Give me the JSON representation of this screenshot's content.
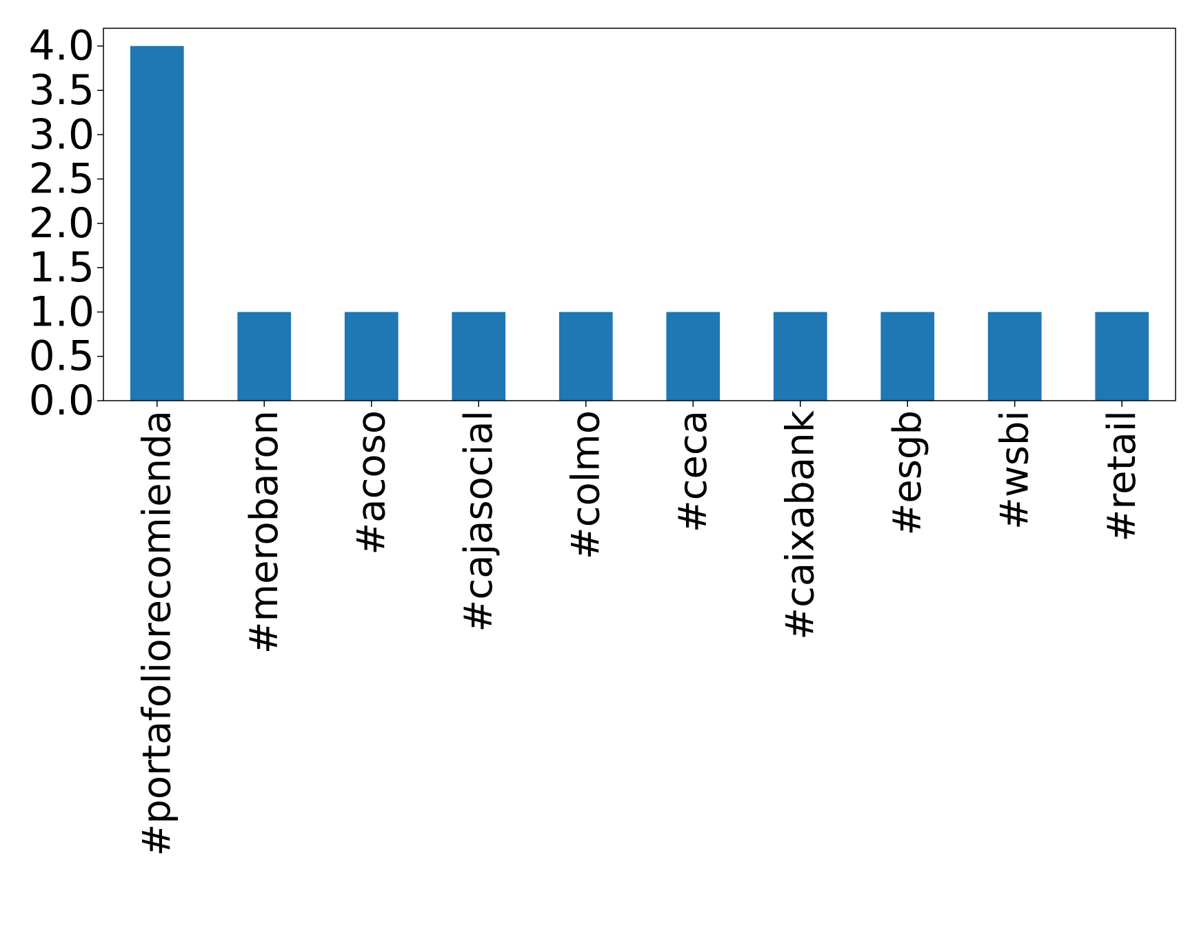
{
  "chart_data": {
    "type": "bar",
    "categories": [
      "#portafoliorecomienda",
      "#merobaron",
      "#acoso",
      "#cajasocial",
      "#colmo",
      "#ceca",
      "#caixabank",
      "#esgb",
      "#wsbi",
      "#retail"
    ],
    "values": [
      4,
      1,
      1,
      1,
      1,
      1,
      1,
      1,
      1,
      1
    ],
    "ylim": [
      0,
      4.2
    ],
    "yticks": [
      0.0,
      0.5,
      1.0,
      1.5,
      2.0,
      2.5,
      3.0,
      3.5,
      4.0
    ],
    "ytick_labels": [
      "0.0",
      "0.5",
      "1.0",
      "1.5",
      "2.0",
      "2.5",
      "3.0",
      "3.5",
      "4.0"
    ],
    "grid": false,
    "bar_color": "#1f77b4"
  }
}
